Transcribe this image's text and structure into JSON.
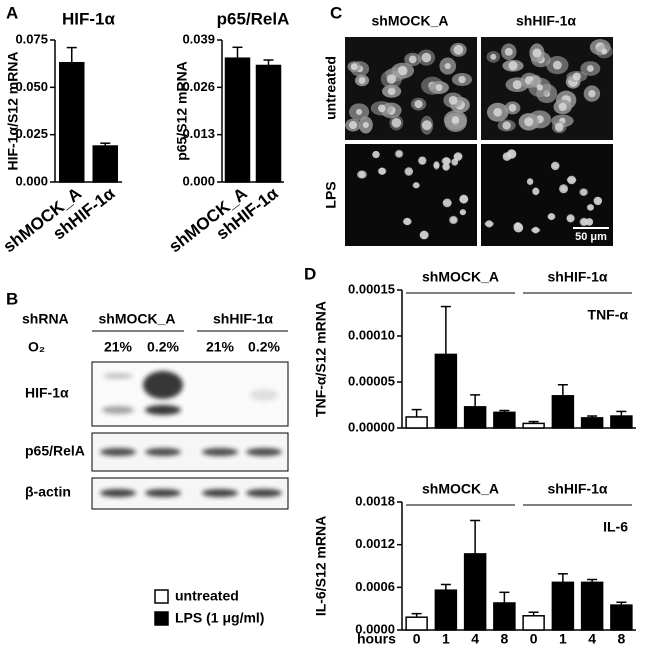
{
  "panel_labels": [
    "A",
    "B",
    "C",
    "D"
  ],
  "chart_data": [
    {
      "type": "bar",
      "title": "HIF-1α",
      "y_label": "HIF-1α/S12 mRNA",
      "categories": [
        "shMOCK_A",
        "shHIF-1α"
      ],
      "values": [
        0.063,
        0.019
      ],
      "errors": [
        0.008,
        0.0015
      ],
      "color": "#000000",
      "ylim": [
        0,
        0.075
      ],
      "yticks": [
        {
          "value": 0,
          "label": "0.000"
        },
        {
          "value": 0.025,
          "label": "0.025"
        },
        {
          "value": 0.05,
          "label": "0.050"
        },
        {
          "value": 0.075,
          "label": "0.075"
        }
      ]
    },
    {
      "type": "bar",
      "title": "p65/RelA",
      "y_label": "p65/S12 mRNA",
      "categories": [
        "shMOCK_A",
        "shHIF-1α"
      ],
      "values": [
        0.034,
        0.032
      ],
      "errors": [
        0.003,
        0.0015
      ],
      "color": "#000000",
      "ylim": [
        0,
        0.039
      ],
      "yticks": [
        {
          "value": 0,
          "label": "0.000"
        },
        {
          "value": 0.013,
          "label": "0.013"
        },
        {
          "value": 0.026,
          "label": "0.026"
        },
        {
          "value": 0.039,
          "label": "0.039"
        }
      ]
    },
    {
      "type": "bar",
      "y_label": "TNF-α/S12 mRNA",
      "annotation": "TNF-α",
      "groups": [
        "shMOCK_A",
        "shHIF-1α"
      ],
      "values": [
        1.2e-05,
        8e-05,
        2.3e-05,
        1.7e-05,
        5e-06,
        3.5e-05,
        1.1e-05,
        1.3e-05
      ],
      "errors": [
        8e-06,
        5.2e-05,
        1.3e-05,
        2e-06,
        2e-06,
        1.2e-05,
        2e-06,
        5e-06
      ],
      "bar_colors": [
        "#ffffff",
        "#000000",
        "#000000",
        "#000000",
        "#ffffff",
        "#000000",
        "#000000",
        "#000000"
      ],
      "ylim": [
        0,
        0.00015
      ],
      "yticks": [
        {
          "value": 0,
          "label": "0.00000"
        },
        {
          "value": 5e-05,
          "label": "0.00005"
        },
        {
          "value": 0.0001,
          "label": "0.00010"
        },
        {
          "value": 0.00015,
          "label": "0.00015"
        }
      ]
    },
    {
      "type": "bar",
      "y_label": "IL-6/S12 mRNA",
      "annotation": "IL-6",
      "groups": [
        "shMOCK_A",
        "shHIF-1α"
      ],
      "x_label": "hours",
      "categories": [
        "0",
        "1",
        "4",
        "8",
        "0",
        "1",
        "4",
        "8"
      ],
      "values": [
        0.00018,
        0.00056,
        0.00107,
        0.00038,
        0.0002,
        0.00067,
        0.00067,
        0.00035
      ],
      "errors": [
        5e-05,
        8e-05,
        0.00047,
        0.00015,
        5e-05,
        0.00012,
        4e-05,
        4e-05
      ],
      "bar_colors": [
        "#ffffff",
        "#000000",
        "#000000",
        "#000000",
        "#ffffff",
        "#000000",
        "#000000",
        "#000000"
      ],
      "ylim": [
        0,
        0.0018
      ],
      "yticks": [
        {
          "value": 0,
          "label": "0.0000"
        },
        {
          "value": 0.0006,
          "label": "0.0006"
        },
        {
          "value": 0.0012,
          "label": "0.0012"
        },
        {
          "value": 0.0018,
          "label": "0.0018"
        }
      ]
    }
  ],
  "legend": [
    {
      "name": "untreated",
      "color": "#ffffff"
    },
    {
      "name": "LPS (1 μg/ml)",
      "color": "#000000"
    }
  ],
  "micrograph": {
    "columns": [
      "shMOCK_A",
      "shHIF-1α"
    ],
    "rows": [
      "untreated",
      "LPS"
    ],
    "scale_bar": "50 μm"
  },
  "blot": {
    "shrna_label": "shRNA",
    "groups": [
      "shMOCK_A",
      "shHIF-1α"
    ],
    "o2_label": "O₂",
    "lanes": [
      "21%",
      "0.2%",
      "21%",
      "0.2%"
    ],
    "bands": [
      "HIF-1α",
      "p65/RelA",
      "β-actin"
    ]
  }
}
